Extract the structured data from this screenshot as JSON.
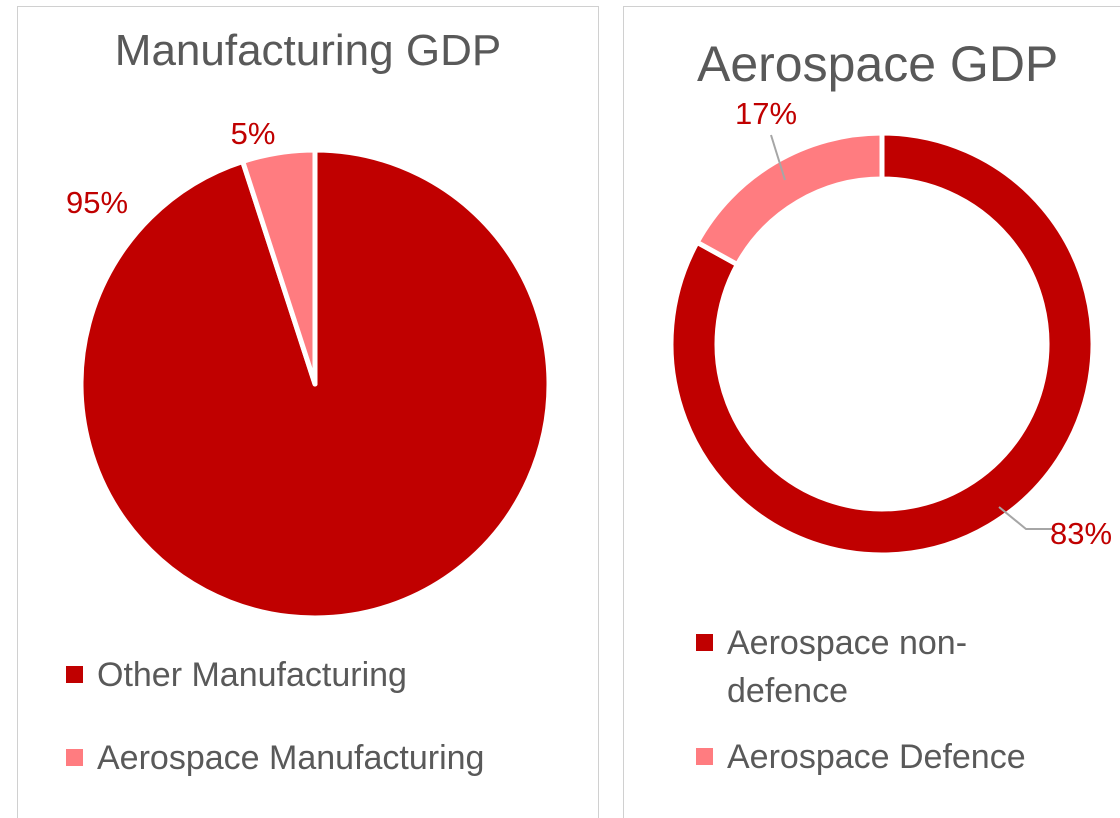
{
  "chart_data": [
    {
      "type": "pie",
      "title": "Manufacturing GDP",
      "categories": [
        "Other Manufacturing",
        "Aerospace Manufacturing"
      ],
      "values": [
        95,
        5
      ],
      "labels": [
        "95%",
        "5%"
      ],
      "colors": [
        "#C00000",
        "#FF7C80"
      ],
      "legend_position": "bottom"
    },
    {
      "type": "donut",
      "title": "Aerospace GDP",
      "categories": [
        "Aerospace non-defence",
        "Aerospace Defence"
      ],
      "values": [
        83,
        17
      ],
      "labels": [
        "83%",
        "17%"
      ],
      "colors": [
        "#C00000",
        "#FF7C80"
      ],
      "legend_position": "bottom"
    }
  ],
  "label_color": "#C00000",
  "leader_color": "#A6A6A6"
}
